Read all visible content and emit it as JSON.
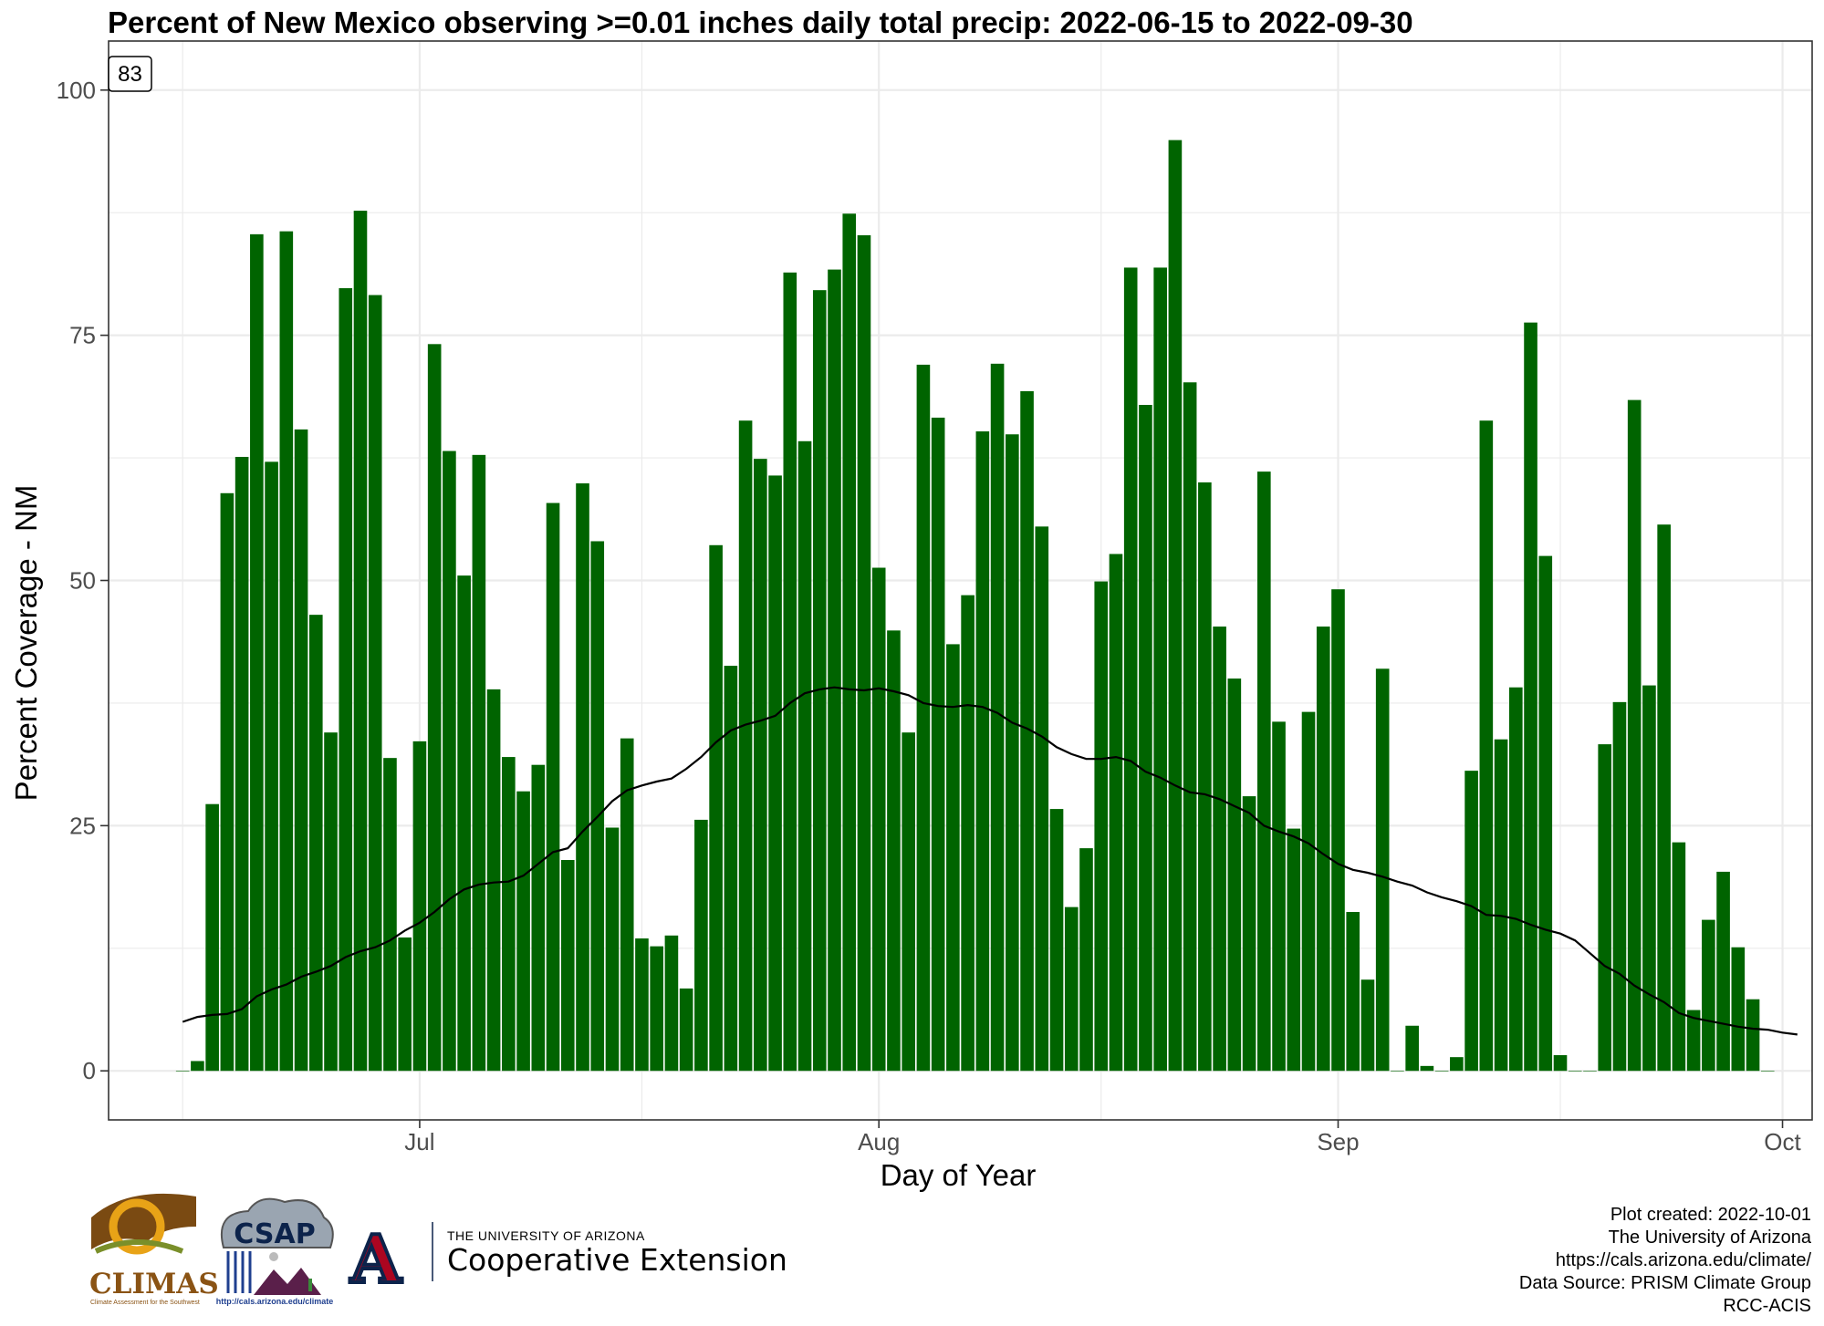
{
  "page": {
    "title": "Percent of New Mexico observing >=0.01 inches daily total precip: 2022-06-15 to 2022-09-30",
    "corner_label": "83",
    "credits": [
      "Plot created: 2022-10-01",
      "The University of Arizona",
      "https://cals.arizona.edu/climate/",
      "Data Source: PRISM Climate Group",
      "RCC-ACIS"
    ],
    "logos": {
      "climas": {
        "text": "CLIMAS",
        "subtext": "Climate Assessment for the Southwest"
      },
      "csap": {
        "text": "CSAP",
        "url": "http://cals.arizona.edu/climate"
      },
      "ua": {
        "small": "THE UNIVERSITY OF ARIZONA",
        "big": "Cooperative Extension",
        "letter": "A"
      }
    }
  },
  "chart_data": {
    "type": "bar",
    "title": "Percent of New Mexico observing >=0.01 inches daily total precip: 2022-06-15 to 2022-09-30",
    "xlabel": "Day of Year",
    "ylabel": "Percent Coverage - NM",
    "x_start": "2022-06-15",
    "x_end": "2022-09-30",
    "xlim": [
      "2022-06-10",
      "2022-10-03"
    ],
    "ylim": [
      -5,
      105
    ],
    "y_ticks": [
      0,
      25,
      50,
      75,
      100
    ],
    "x_ticks": [
      {
        "date": "2022-07-01",
        "label": "Jul"
      },
      {
        "date": "2022-08-01",
        "label": "Aug"
      },
      {
        "date": "2022-09-01",
        "label": "Sep"
      },
      {
        "date": "2022-10-01",
        "label": "Oct"
      }
    ],
    "x_minor_ticks": [
      "2022-06-15",
      "2022-07-16",
      "2022-08-16",
      "2022-09-16"
    ],
    "grid": true,
    "colors": {
      "bars": "#006400",
      "line": "#000000",
      "grid": "#ebebeb"
    },
    "series": [
      {
        "type": "bar",
        "values": [
          0,
          1,
          27.2,
          58.9,
          62.6,
          85.3,
          62.1,
          85.6,
          65.4,
          46.5,
          34.5,
          79.8,
          87.7,
          79.1,
          31.9,
          13.6,
          33.6,
          74.1,
          63.2,
          50.5,
          62.8,
          38.9,
          32,
          28.5,
          31.2,
          57.9,
          21.5,
          59.9,
          54,
          24.8,
          33.9,
          13.5,
          12.7,
          13.8,
          8.4,
          25.6,
          53.6,
          41.3,
          66.3,
          62.4,
          60.7,
          81.4,
          64.2,
          79.6,
          81.7,
          87.4,
          85.2,
          51.3,
          44.9,
          34.5,
          72,
          66.6,
          43.5,
          48.5,
          65.2,
          72.1,
          64.9,
          69.3,
          55.5,
          26.7,
          16.7,
          22.7,
          49.9,
          52.7,
          81.9,
          67.9,
          81.9,
          94.9,
          70.2,
          60,
          45.3,
          40,
          28,
          61.1,
          35.6,
          24.7,
          36.6,
          45.3,
          49.1,
          16.2,
          9.3,
          41,
          0,
          4.6,
          0.5,
          0,
          1.4,
          30.6,
          66.3,
          33.8,
          39.1,
          76.3,
          52.5,
          1.6,
          0,
          0,
          33.3,
          37.6,
          68.4,
          39.3,
          55.7,
          23.3,
          6.2,
          15.4,
          20.3,
          12.6,
          7.3,
          0
        ]
      },
      {
        "type": "line",
        "values": [
          5,
          5.5,
          5.7,
          5.8,
          6.3,
          7.6,
          8.3,
          8.8,
          9.6,
          10.1,
          10.7,
          11.6,
          12.2,
          12.6,
          13.3,
          14.3,
          15.1,
          16.2,
          17.5,
          18.5,
          19,
          19.2,
          19.3,
          19.9,
          21.1,
          22.3,
          22.7,
          24.4,
          25.9,
          27.5,
          28.6,
          29.1,
          29.5,
          29.8,
          30.8,
          32,
          33.5,
          34.7,
          35.3,
          35.7,
          36.2,
          37.5,
          38.5,
          38.9,
          39.1,
          38.9,
          38.8,
          39,
          38.7,
          38.3,
          37.5,
          37.2,
          37.1,
          37.3,
          37.1,
          36.5,
          35.5,
          34.9,
          34.1,
          33,
          32.3,
          31.8,
          31.8,
          32,
          31.6,
          30.5,
          29.9,
          29.1,
          28.4,
          28.2,
          27.7,
          27,
          26.3,
          25,
          24.4,
          23.9,
          23.2,
          22.1,
          21.1,
          20.5,
          20.2,
          19.8,
          19.3,
          18.9,
          18.2,
          17.7,
          17.3,
          16.8,
          15.9,
          15.8,
          15.5,
          14.9,
          14.4,
          14,
          13.3,
          12,
          10.7,
          9.9,
          8.7,
          7.8,
          7,
          5.9,
          5.4,
          5.1,
          4.8,
          4.5,
          4.3,
          4.2,
          3.9,
          3.7
        ]
      }
    ]
  }
}
